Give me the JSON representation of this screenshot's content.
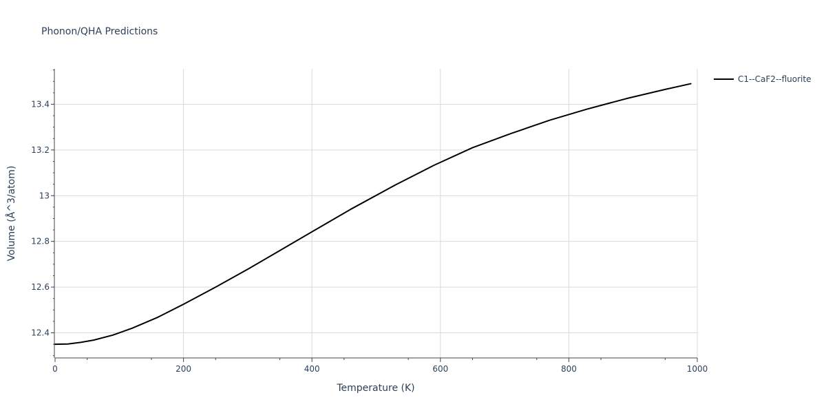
{
  "chart_data": {
    "type": "line",
    "title": "Phonon/QHA Predictions",
    "xlabel": "Temperature (K)",
    "ylabel": "Volume (Å^3/atom)",
    "xlim": [
      0,
      1000
    ],
    "ylim": [
      12.29,
      13.555
    ],
    "xticks": [
      0,
      200,
      400,
      600,
      800,
      1000
    ],
    "xtick_labels": [
      "0",
      "200",
      "400",
      "600",
      "800",
      "1000"
    ],
    "yticks": [
      12.4,
      12.6,
      12.8,
      13.0,
      13.2,
      13.4
    ],
    "ytick_labels": [
      "12.4",
      "12.6",
      "12.8",
      "13",
      "13.2",
      "13.4"
    ],
    "grid": true,
    "legend_position": "top-right",
    "series": [
      {
        "name": "C1--CaF2--fluorite",
        "color": "#000000",
        "x": [
          0,
          20,
          40,
          60,
          90,
          120,
          160,
          200,
          250,
          300,
          350,
          400,
          460,
          530,
          590,
          650,
          710,
          770,
          830,
          890,
          950,
          990
        ],
        "y": [
          12.35,
          12.351,
          12.358,
          12.368,
          12.39,
          12.42,
          12.468,
          12.525,
          12.6,
          12.678,
          12.76,
          12.842,
          12.94,
          13.047,
          13.133,
          13.21,
          13.272,
          13.33,
          13.38,
          13.425,
          13.465,
          13.49
        ]
      }
    ]
  }
}
